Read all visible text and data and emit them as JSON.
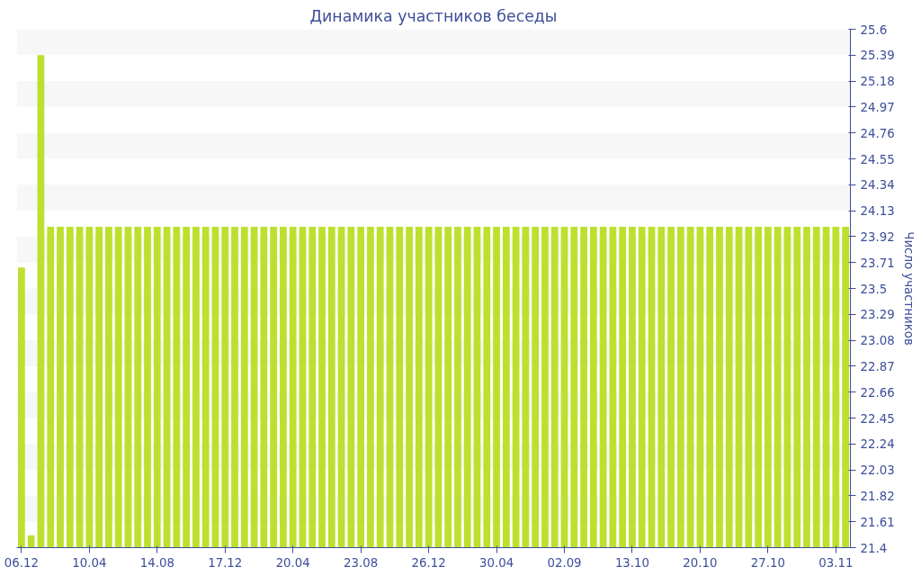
{
  "chart_data": {
    "type": "bar",
    "title": "Динамика участников беседы",
    "ylabel": "Число участников",
    "categories": [
      "06.12",
      null,
      null,
      null,
      null,
      null,
      null,
      "10.04",
      null,
      null,
      null,
      null,
      null,
      null,
      "14.08",
      null,
      null,
      null,
      null,
      null,
      null,
      "17.12",
      null,
      null,
      null,
      null,
      null,
      null,
      "20.04",
      null,
      null,
      null,
      null,
      null,
      null,
      "23.08",
      null,
      null,
      null,
      null,
      null,
      null,
      "26.12",
      null,
      null,
      null,
      null,
      null,
      null,
      "30.04",
      null,
      null,
      null,
      null,
      null,
      null,
      "02.09",
      null,
      null,
      null,
      null,
      null,
      null,
      "13.10",
      null,
      null,
      null,
      null,
      null,
      null,
      "20.10",
      null,
      null,
      null,
      null,
      null,
      null,
      "27.10",
      null,
      null,
      null,
      null,
      null,
      null,
      "03.11",
      null
    ],
    "values": [
      23.67,
      21.5,
      25.39,
      24,
      24,
      24,
      24,
      24,
      24,
      24,
      24,
      24,
      24,
      24,
      24,
      24,
      24,
      24,
      24,
      24,
      24,
      24,
      24,
      24,
      24,
      24,
      24,
      24,
      24,
      24,
      24,
      24,
      24,
      24,
      24,
      24,
      24,
      24,
      24,
      24,
      24,
      24,
      24,
      24,
      24,
      24,
      24,
      24,
      24,
      24,
      24,
      24,
      24,
      24,
      24,
      24,
      24,
      24,
      24,
      24,
      24,
      24,
      24,
      24,
      24,
      24,
      24,
      24,
      24,
      24,
      24,
      24,
      24,
      24,
      24,
      24,
      24,
      24,
      24,
      24,
      24,
      24,
      24,
      24,
      24,
      24
    ],
    "color": "#bde02e",
    "ylim": [
      21.4,
      25.6
    ],
    "yticks": [
      21.4,
      21.61,
      21.82,
      22.03,
      22.24,
      22.45,
      22.66,
      22.87,
      23.08,
      23.29,
      23.5,
      23.71,
      23.92,
      24.13,
      24.34,
      24.55,
      24.76,
      24.97,
      25.18,
      25.39,
      25.6
    ]
  }
}
